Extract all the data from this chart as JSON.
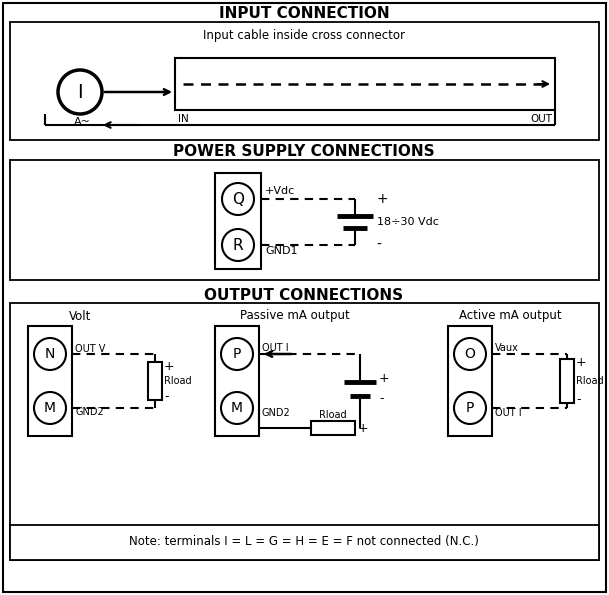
{
  "bg_color": "#ffffff",
  "section1_title": "INPUT CONNECTION",
  "section2_title": "POWER SUPPLY CONNECTIONS",
  "section3_title": "OUTPUT CONNECTIONS",
  "note_text": "Note: terminals I = L = G = H = E = F not connected (N.C.)"
}
